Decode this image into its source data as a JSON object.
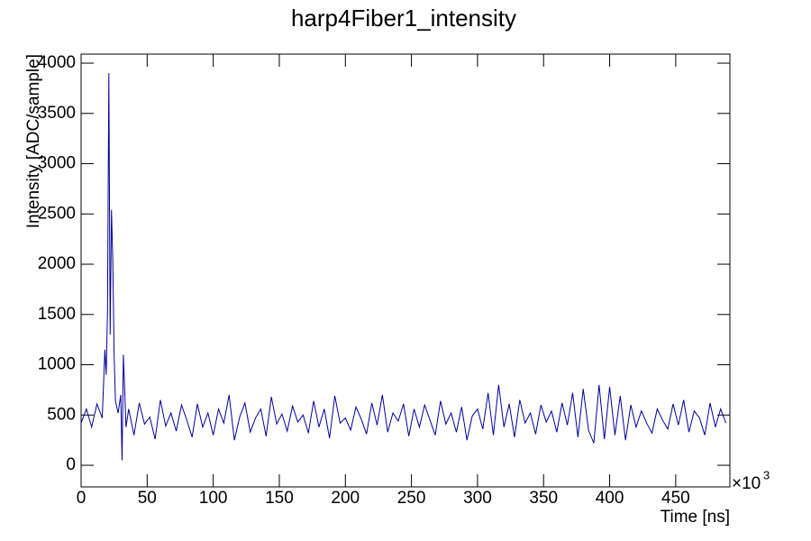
{
  "chart_data": {
    "type": "line",
    "title": "harp4Fiber1_intensity",
    "x_label": "Time [ns]",
    "y_label": "Intensity [ADC/sample]",
    "x_scale_base": "×10",
    "x_scale_exponent": "3",
    "xlim": [
      0,
      491
    ],
    "xticks": [
      0,
      50,
      100,
      150,
      200,
      250,
      300,
      350,
      400,
      450
    ],
    "ylim": [
      -215,
      4090
    ],
    "yticks": [
      0,
      500,
      1000,
      1500,
      2000,
      2500,
      3000,
      3500,
      4000
    ],
    "series": [
      {
        "color": "#000099",
        "x": [
          0,
          4,
          8,
          12,
          16,
          18,
          19,
          20,
          21,
          22,
          23,
          24,
          25,
          26,
          28,
          30,
          31,
          32,
          34,
          36,
          40,
          44,
          48,
          52,
          56,
          60,
          64,
          68,
          72,
          76,
          80,
          84,
          88,
          92,
          96,
          100,
          104,
          108,
          112,
          116,
          120,
          124,
          128,
          132,
          136,
          140,
          144,
          148,
          152,
          156,
          160,
          164,
          168,
          172,
          176,
          180,
          184,
          188,
          192,
          196,
          200,
          204,
          208,
          212,
          216,
          220,
          224,
          228,
          232,
          236,
          240,
          244,
          248,
          252,
          256,
          260,
          264,
          268,
          272,
          276,
          280,
          284,
          288,
          292,
          296,
          300,
          304,
          308,
          312,
          316,
          320,
          324,
          328,
          332,
          336,
          340,
          344,
          348,
          352,
          356,
          360,
          364,
          368,
          372,
          376,
          380,
          384,
          388,
          392,
          396,
          400,
          404,
          408,
          412,
          416,
          420,
          424,
          428,
          432,
          436,
          440,
          444,
          448,
          452,
          456,
          460,
          464,
          468,
          472,
          476,
          480,
          484,
          488
        ],
        "values": [
          420,
          560,
          380,
          610,
          470,
          1150,
          900,
          1550,
          3900,
          1300,
          2540,
          2020,
          1100,
          640,
          520,
          700,
          50,
          1100,
          380,
          560,
          300,
          620,
          410,
          480,
          260,
          650,
          390,
          520,
          340,
          600,
          450,
          280,
          610,
          380,
          520,
          300,
          560,
          420,
          700,
          250,
          480,
          620,
          330,
          470,
          560,
          290,
          680,
          410,
          510,
          340,
          590,
          430,
          500,
          320,
          640,
          380,
          560,
          270,
          690,
          420,
          470,
          350,
          580,
          460,
          310,
          620,
          400,
          700,
          330,
          520,
          440,
          610,
          290,
          560,
          380,
          600,
          450,
          300,
          640,
          410,
          520,
          330,
          580,
          250,
          490,
          560,
          360,
          720,
          300,
          800,
          380,
          610,
          280,
          650,
          420,
          520,
          310,
          600,
          430,
          540,
          330,
          620,
          400,
          720,
          280,
          760,
          350,
          220,
          800,
          260,
          780,
          300,
          690,
          250,
          600,
          380,
          540,
          420,
          320,
          560,
          450,
          360,
          610,
          400,
          650,
          330,
          540,
          470,
          300,
          620,
          380,
          560,
          420
        ]
      }
    ]
  }
}
